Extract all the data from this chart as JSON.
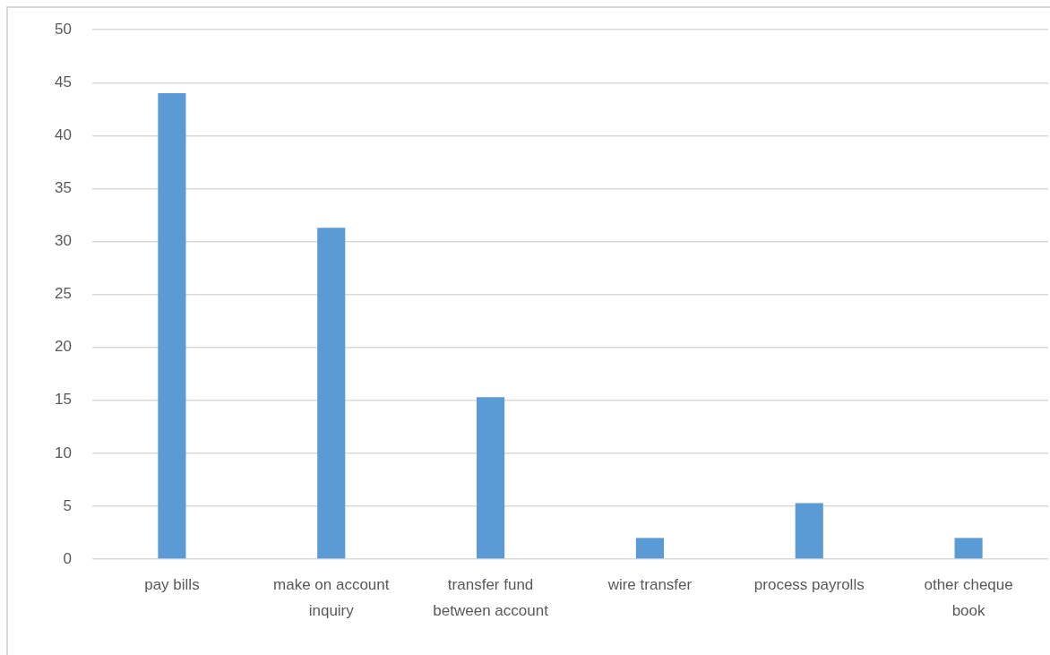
{
  "chart_data": {
    "type": "bar",
    "categories": [
      "pay bills",
      "make on account inquiry",
      "transfer fund between account",
      "wire transfer",
      "process payrolls",
      "other cheque book"
    ],
    "values": [
      44,
      31.3,
      15.3,
      2,
      5.3,
      2
    ],
    "color": "#5b9bd5",
    "ylim": [
      0,
      50
    ],
    "yticks": [
      0,
      5,
      10,
      15,
      20,
      25,
      30,
      35,
      40,
      45,
      50
    ],
    "grid": "y"
  }
}
